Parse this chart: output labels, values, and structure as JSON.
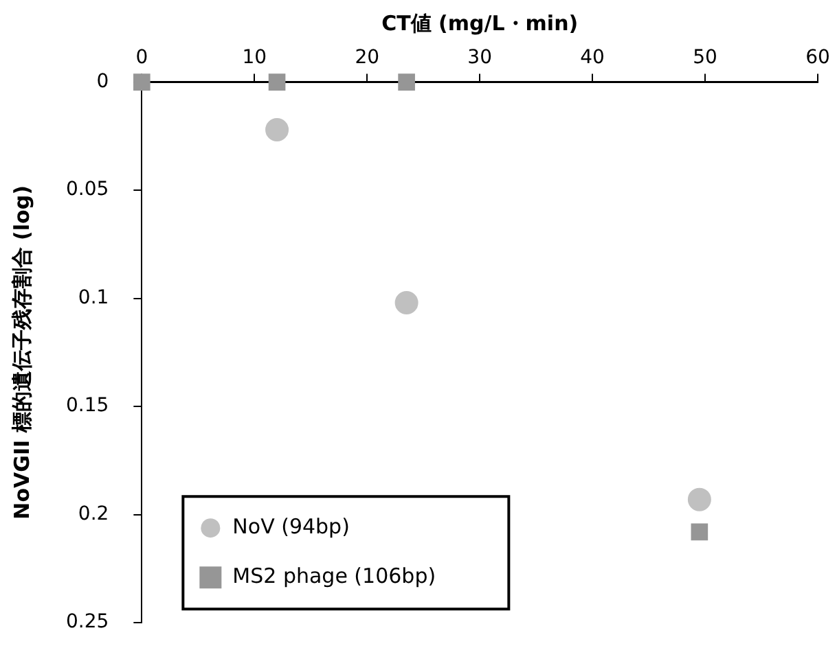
{
  "chart_data": {
    "type": "scatter",
    "xlabel": "CT値 (mg/L・min)",
    "ylabel": "NoVGII 標的遺伝子残存割合 (log)",
    "xlim": [
      0,
      60
    ],
    "xticks": [
      0,
      10,
      20,
      30,
      40,
      50,
      60
    ],
    "ylim": [
      0.25,
      0
    ],
    "yticks": [
      0,
      0.05,
      0.1,
      0.15,
      0.2,
      0.25
    ],
    "grid": false,
    "legend": "bottom left",
    "series": [
      {
        "name": "NoV (94bp)",
        "color": "#c0c0c0",
        "marker": "circle",
        "x": [
          12,
          23.5,
          49.5
        ],
        "values": [
          0.022,
          0.102,
          0.193
        ]
      },
      {
        "name": "MS2 phage (106bp)",
        "color": "#969696",
        "marker": "square",
        "x": [
          0,
          12,
          23.5,
          49.5
        ],
        "values": [
          0,
          0,
          0,
          0.208
        ]
      }
    ]
  }
}
